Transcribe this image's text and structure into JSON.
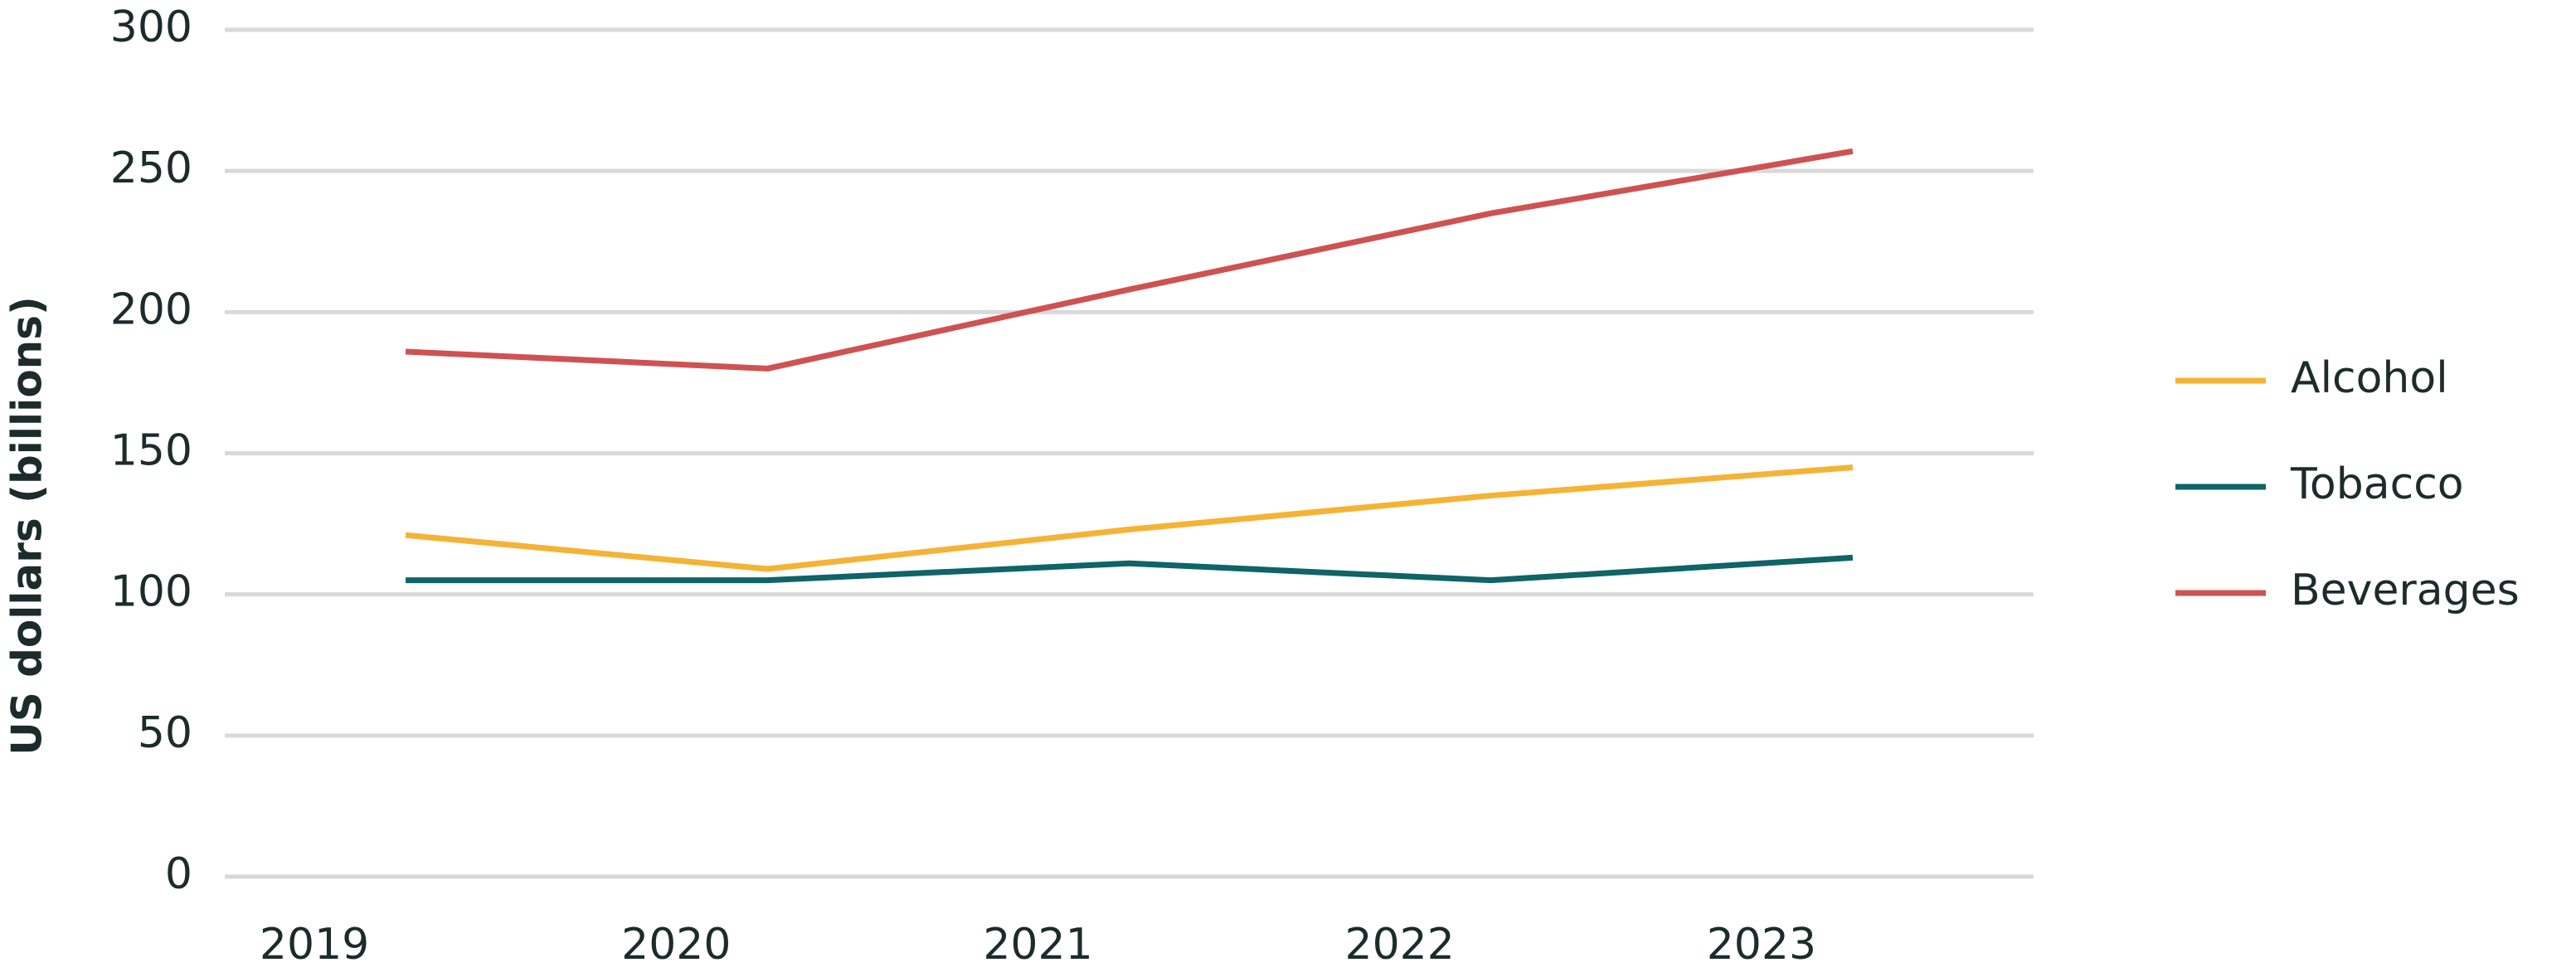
{
  "chart_data": {
    "type": "line",
    "y_label": "US dollars (billions)",
    "categories": [
      "2019",
      "2020",
      "2021",
      "2022",
      "2023"
    ],
    "series": [
      {
        "name": "Alcohol",
        "color": "#f5b335",
        "values": [
          121,
          109,
          123,
          135,
          145
        ]
      },
      {
        "name": "Tobacco",
        "color": "#0e6466",
        "values": [
          105,
          105,
          111,
          105,
          113
        ]
      },
      {
        "name": "Beverages",
        "color": "#cf5252",
        "values": [
          186,
          180,
          208,
          235,
          257
        ]
      }
    ],
    "ylim": [
      0,
      300
    ],
    "yticks": [
      0,
      50,
      100,
      150,
      200,
      250,
      300
    ],
    "grid": true,
    "legend": "right"
  }
}
